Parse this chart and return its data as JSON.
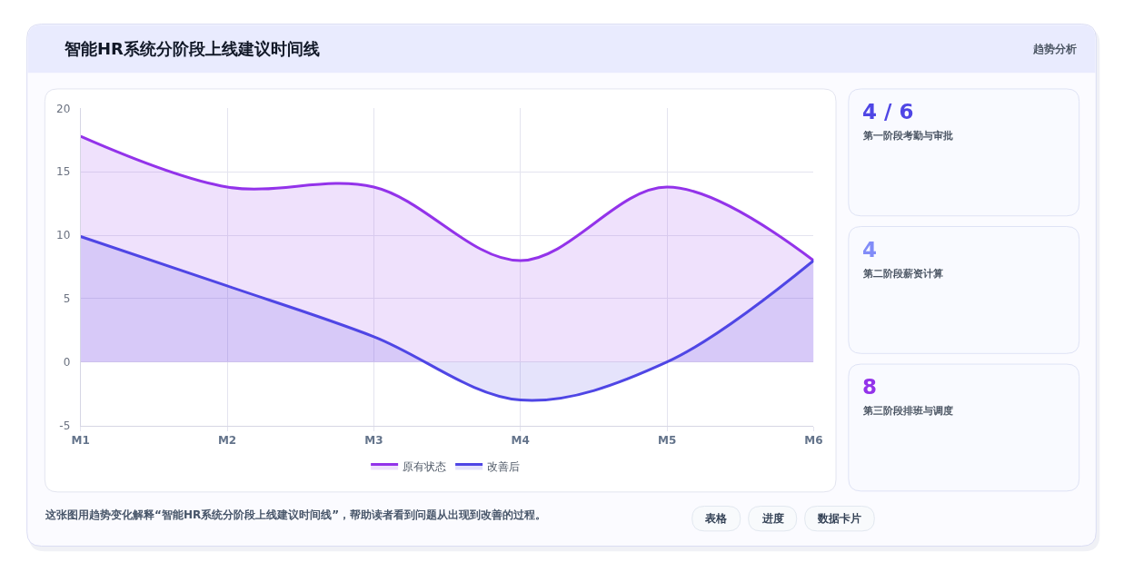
{
  "chart_data": {
    "type": "area",
    "title": "智能HR系统分阶段上线建议时间线",
    "categories": [
      "M1",
      "M2",
      "M3",
      "M4",
      "M5",
      "M6"
    ],
    "series": [
      {
        "name": "原有状态",
        "color": "#9333ea",
        "values": [
          17.8,
          13.8,
          13.8,
          8,
          13.8,
          8
        ]
      },
      {
        "name": "改善后",
        "color": "#4f46e5",
        "values": [
          9.9,
          6,
          2,
          -3,
          0,
          8
        ]
      }
    ],
    "ylim": [
      -5,
      20
    ],
    "yticks": [
      -5,
      0,
      5,
      10,
      15,
      20
    ],
    "grid": true,
    "legend": "bottom",
    "annotations": [
      "趋势分析",
      "4 / 6",
      "第一阶段考勤与审批",
      "4",
      "第二阶段薪资计算",
      "8",
      "第三阶段排班与调度",
      "这张图用趋势变化解释“智能HR系统分阶段上线建议时间线”，帮助读者看到问题从出现到改善的过程。",
      "表格",
      "进度",
      "数据卡片"
    ]
  }
}
